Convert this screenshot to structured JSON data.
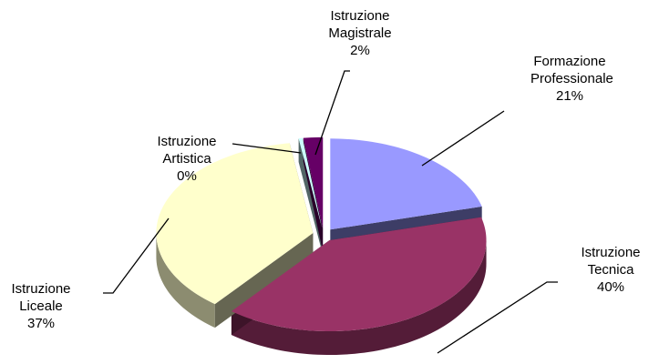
{
  "chart_data": {
    "type": "pie3d",
    "categories": [
      "Formazione Professionale",
      "Istruzione Tecnica",
      "Istruzione Liceale",
      "Istruzione Artistica",
      "Istruzione Magistrale"
    ],
    "values": [
      21,
      40,
      37,
      0.4,
      2
    ],
    "value_labels": [
      "21%",
      "40%",
      "37%",
      "0%",
      "2%"
    ],
    "colors": [
      "#9999ff",
      "#993366",
      "#ffffcc",
      "#ccffff",
      "#660066"
    ]
  }
}
